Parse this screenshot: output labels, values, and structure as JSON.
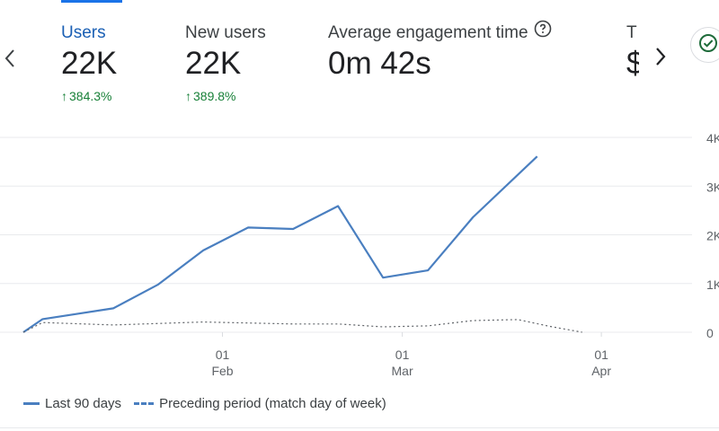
{
  "metrics": [
    {
      "label": "Users",
      "value": "22K",
      "change": "384.3%",
      "active": true
    },
    {
      "label": "New users",
      "value": "22K",
      "change": "389.8%",
      "active": false
    },
    {
      "label": "Average engagement time",
      "value": "0m 42s",
      "change": "",
      "active": false
    }
  ],
  "cutoff_metric": {
    "label": "T",
    "value": "$"
  },
  "icons": {
    "prev": "chevron-left-icon",
    "next": "chevron-right-icon",
    "help": "help-circle-icon",
    "insights": "check-circle-icon"
  },
  "colors": {
    "accent": "#1a73e8",
    "series_current": "#4a7fc0",
    "series_previous": "#5f6368",
    "positive_change": "#188038",
    "gridline": "#e8eaed"
  },
  "legend": {
    "current": "Last 90 days",
    "previous": "Preceding period (match day of week)"
  },
  "chart_data": {
    "type": "line",
    "x_ticks": [
      {
        "day": "01",
        "month": "Feb",
        "x": 31
      },
      {
        "day": "01",
        "month": "Mar",
        "x": 59
      },
      {
        "day": "01",
        "month": "Apr",
        "x": 90
      }
    ],
    "y_ticks": [
      "0",
      "1K",
      "2K",
      "3K",
      "4K"
    ],
    "ylim": [
      0,
      4000
    ],
    "xlim": [
      0,
      103
    ],
    "grid": true,
    "series": [
      {
        "name": "Last 90 days",
        "style": "solid",
        "points": [
          [
            0,
            0
          ],
          [
            3,
            270
          ],
          [
            8,
            370
          ],
          [
            14,
            490
          ],
          [
            21,
            980
          ],
          [
            28,
            1680
          ],
          [
            35,
            2150
          ],
          [
            42,
            2120
          ],
          [
            49,
            2590
          ],
          [
            56,
            1120
          ],
          [
            63,
            1270
          ],
          [
            70,
            2360
          ],
          [
            80,
            3610
          ]
        ]
      },
      {
        "name": "Preceding period (match day of week)",
        "style": "dashed",
        "points": [
          [
            0,
            0
          ],
          [
            3,
            200
          ],
          [
            14,
            150
          ],
          [
            28,
            210
          ],
          [
            42,
            170
          ],
          [
            49,
            170
          ],
          [
            56,
            110
          ],
          [
            63,
            130
          ],
          [
            70,
            240
          ],
          [
            77,
            260
          ],
          [
            82,
            120
          ],
          [
            87,
            0
          ]
        ]
      }
    ]
  }
}
